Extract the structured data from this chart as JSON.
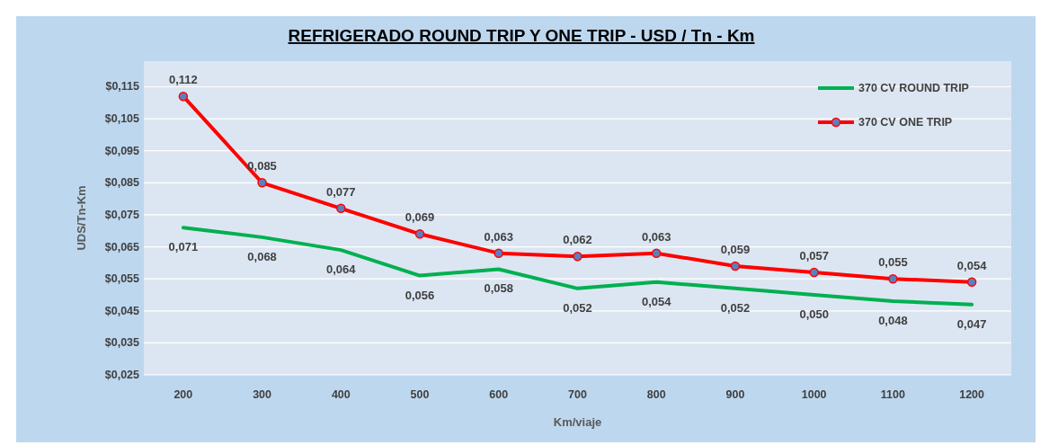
{
  "chart_data": {
    "type": "line",
    "title": "REFRIGERADO ROUND TRIP Y ONE TRIP - USD / Tn - Km",
    "xlabel": "Km/viaje",
    "ylabel": "UDS/Tn-Km",
    "categories": [
      "200",
      "300",
      "400",
      "500",
      "600",
      "700",
      "800",
      "900",
      "1000",
      "1100",
      "1200"
    ],
    "series": [
      {
        "name": "370 CV ROUND TRIP",
        "color": "#00b050",
        "marker": "none",
        "values": [
          0.071,
          0.068,
          0.064,
          0.056,
          0.058,
          0.052,
          0.054,
          0.052,
          0.05,
          0.048,
          0.047
        ],
        "value_labels": [
          "0,071",
          "0,068",
          "0,064",
          "0,056",
          "0,058",
          "0,052",
          "0,054",
          "0,052",
          "0,050",
          "0,048",
          "0,047"
        ]
      },
      {
        "name": "370 CV ONE TRIP",
        "color": "#ff0000",
        "marker": "circle",
        "values": [
          0.112,
          0.085,
          0.077,
          0.069,
          0.063,
          0.062,
          0.063,
          0.059,
          0.057,
          0.055,
          0.054
        ],
        "value_labels": [
          "0,112",
          "0,085",
          "0,077",
          "0,069",
          "0,063",
          "0,062",
          "0,063",
          "0,059",
          "0,057",
          "0,055",
          "0,054"
        ]
      }
    ],
    "ylim": [
      0.025,
      0.123
    ],
    "yticks": [
      {
        "value": 0.025,
        "label": "$0,025"
      },
      {
        "value": 0.035,
        "label": "$0,035"
      },
      {
        "value": 0.045,
        "label": "$0,045"
      },
      {
        "value": 0.055,
        "label": "$0,055"
      },
      {
        "value": 0.065,
        "label": "$0,065"
      },
      {
        "value": 0.075,
        "label": "$0,075"
      },
      {
        "value": 0.085,
        "label": "$0,085"
      },
      {
        "value": 0.095,
        "label": "$0,095"
      },
      {
        "value": 0.105,
        "label": "$0,105"
      },
      {
        "value": 0.115,
        "label": "$0,115"
      }
    ],
    "grid": "y",
    "legend": "top right",
    "line_style": "solid"
  }
}
